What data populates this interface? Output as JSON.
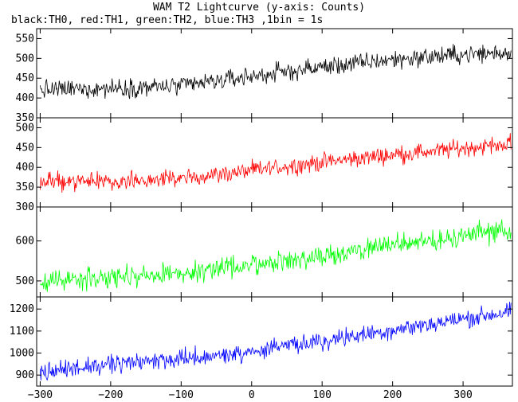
{
  "chart_data": {
    "type": "line",
    "title": "WAM T2 Lightcurve (y-axis: Counts)",
    "subtitle": "black:TH0, red:TH1, green:TH2, blue:TH3 ,1bin = 1s",
    "xlim": [
      -305,
      370
    ],
    "x_ticks": [
      -300,
      -200,
      -100,
      0,
      100,
      200,
      300
    ],
    "x_tick_labels": [
      "−300",
      "−200",
      "−100",
      "0",
      "100",
      "200",
      "300"
    ],
    "grid": false,
    "panels": [
      {
        "series_label": "TH0",
        "color": "#000000",
        "ylim": [
          350,
          575
        ],
        "y_ticks": [
          350,
          400,
          450,
          500,
          550
        ],
        "x_trend": [
          -300,
          -200,
          -100,
          0,
          100,
          200,
          300,
          370
        ],
        "y_trend": [
          420,
          425,
          430,
          455,
          478,
          497,
          510,
          515
        ],
        "noise_amplitude": 22
      },
      {
        "series_label": "TH1",
        "color": "#ff0000",
        "ylim": [
          300,
          525
        ],
        "y_ticks": [
          300,
          350,
          400,
          450,
          500
        ],
        "x_trend": [
          -300,
          -200,
          -100,
          0,
          100,
          200,
          300,
          370
        ],
        "y_trend": [
          362,
          365,
          372,
          392,
          413,
          432,
          448,
          460
        ],
        "noise_amplitude": 20
      },
      {
        "series_label": "TH2",
        "color": "#00ff00",
        "ylim": [
          460,
          685
        ],
        "y_ticks": [
          500,
          600
        ],
        "x_trend": [
          -300,
          -200,
          -100,
          0,
          100,
          200,
          300,
          370
        ],
        "y_trend": [
          500,
          507,
          520,
          540,
          562,
          590,
          612,
          630
        ],
        "noise_amplitude": 24
      },
      {
        "series_label": "TH3",
        "color": "#0000ff",
        "ylim": [
          850,
          1255
        ],
        "y_ticks": [
          900,
          1000,
          1100,
          1200
        ],
        "x_trend": [
          -300,
          -200,
          -100,
          0,
          100,
          200,
          300,
          370
        ],
        "y_trend": [
          915,
          945,
          975,
          1005,
          1055,
          1105,
          1155,
          1190
        ],
        "noise_amplitude": 38
      }
    ]
  }
}
